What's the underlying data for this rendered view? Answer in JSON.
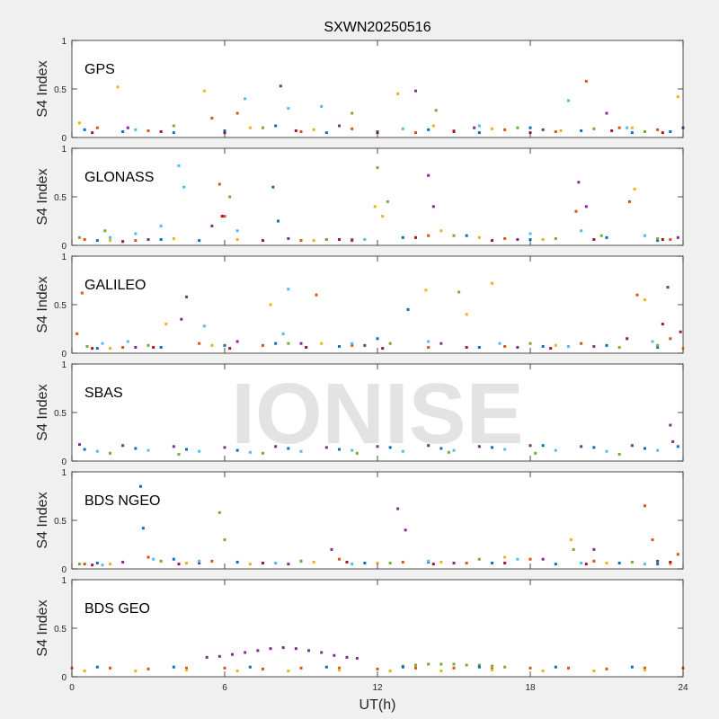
{
  "chart_data": [
    {
      "type": "scatter",
      "title": "SXWN20250516",
      "label": "GPS",
      "ylabel": "S4 Index",
      "xlim": [
        0,
        24
      ],
      "xticks": [
        0,
        6,
        12,
        18,
        24
      ],
      "ylim": [
        0,
        1
      ],
      "yticks": [
        0,
        0.5,
        1
      ],
      "series": [
        {
          "color": "#0072bd",
          "x": [
            0.5,
            2,
            4,
            6,
            8,
            10,
            12,
            14,
            16,
            18,
            20,
            22,
            23.5
          ],
          "values": [
            0.08,
            0.06,
            0.05,
            0.07,
            0.12,
            0.05,
            0.06,
            0.08,
            0.05,
            0.1,
            0.07,
            0.05,
            0.06
          ]
        },
        {
          "color": "#d95319",
          "x": [
            1,
            3,
            5.5,
            6.5,
            9,
            11,
            13.5,
            15,
            17,
            19,
            20.2,
            21.5,
            23
          ],
          "values": [
            0.1,
            0.07,
            0.2,
            0.25,
            0.06,
            0.09,
            0.05,
            0.07,
            0.08,
            0.06,
            0.58,
            0.1,
            0.08
          ]
        },
        {
          "color": "#edb120",
          "x": [
            0.3,
            1.8,
            5.2,
            7,
            9.5,
            12.8,
            14.2,
            16.5,
            19.2,
            22,
            23.8
          ],
          "values": [
            0.15,
            0.52,
            0.48,
            0.1,
            0.08,
            0.45,
            0.12,
            0.09,
            0.07,
            0.1,
            0.42
          ]
        },
        {
          "color": "#7e2f8e",
          "x": [
            2.2,
            8.2,
            10.5,
            13.5,
            15.8,
            18.5,
            21,
            24
          ],
          "values": [
            0.1,
            0.53,
            0.12,
            0.48,
            0.1,
            0.08,
            0.25,
            0.1
          ]
        },
        {
          "color": "#77ac30",
          "x": [
            4,
            7.5,
            11,
            14.3,
            17.5,
            20.5,
            22.5
          ],
          "values": [
            0.12,
            0.1,
            0.25,
            0.28,
            0.1,
            0.09,
            0.06
          ]
        },
        {
          "color": "#4dbeee",
          "x": [
            2.5,
            6.8,
            8.5,
            9.8,
            13,
            16,
            19.5,
            21.8
          ],
          "values": [
            0.08,
            0.4,
            0.3,
            0.32,
            0.09,
            0.12,
            0.38,
            0.1
          ]
        },
        {
          "color": "#a2142f",
          "x": [
            0.8,
            3.5,
            6,
            8.8,
            12,
            15,
            18,
            21.2,
            23.2
          ],
          "values": [
            0.05,
            0.06,
            0.05,
            0.07,
            0.05,
            0.06,
            0.05,
            0.07,
            0.05
          ]
        }
      ]
    },
    {
      "type": "scatter",
      "label": "GLONASS",
      "ylabel": "S4 Index",
      "xlim": [
        0,
        24
      ],
      "xticks": [
        0,
        6,
        12,
        18,
        24
      ],
      "ylim": [
        0,
        1
      ],
      "yticks": [
        0,
        0.5,
        1
      ],
      "series": [
        {
          "color": "#0072bd",
          "x": [
            1,
            3.5,
            5,
            7.9,
            8.1,
            10,
            13,
            15.5,
            18,
            21,
            23
          ],
          "values": [
            0.05,
            0.06,
            0.05,
            0.6,
            0.25,
            0.06,
            0.08,
            0.1,
            0.06,
            0.08,
            0.05
          ]
        },
        {
          "color": "#d95319",
          "x": [
            0.5,
            2.5,
            5.8,
            6,
            9,
            11,
            14,
            17,
            19.8,
            21.9,
            23.5
          ],
          "values": [
            0.06,
            0.05,
            0.63,
            0.3,
            0.05,
            0.06,
            0.1,
            0.07,
            0.35,
            0.45,
            0.06
          ]
        },
        {
          "color": "#edb120",
          "x": [
            1.5,
            4,
            6.5,
            9.5,
            11.9,
            12.2,
            14.5,
            16,
            18.5,
            22.1
          ],
          "values": [
            0.05,
            0.07,
            0.06,
            0.05,
            0.4,
            0.3,
            0.15,
            0.08,
            0.06,
            0.58
          ]
        },
        {
          "color": "#7e2f8e",
          "x": [
            3,
            5.5,
            8.5,
            11,
            14,
            14.2,
            17.5,
            19.9,
            20.2,
            23.8
          ],
          "values": [
            0.06,
            0.2,
            0.07,
            0.05,
            0.72,
            0.4,
            0.06,
            0.65,
            0.4,
            0.08
          ]
        },
        {
          "color": "#77ac30",
          "x": [
            0.3,
            1.3,
            6.2,
            10,
            12,
            12.4,
            15,
            19,
            20.8,
            23
          ],
          "values": [
            0.08,
            0.15,
            0.5,
            0.06,
            0.8,
            0.45,
            0.1,
            0.07,
            0.1,
            0.07
          ]
        },
        {
          "color": "#4dbeee",
          "x": [
            1.5,
            2.5,
            3.5,
            4.2,
            4.4,
            6.5,
            11.5,
            18,
            20,
            22.5
          ],
          "values": [
            0.08,
            0.12,
            0.2,
            0.82,
            0.6,
            0.15,
            0.06,
            0.12,
            0.15,
            0.1
          ]
        },
        {
          "color": "#a2142f",
          "x": [
            2,
            5.9,
            7.5,
            10.5,
            13.5,
            16.5,
            20.5,
            23.2
          ],
          "values": [
            0.04,
            0.3,
            0.05,
            0.06,
            0.08,
            0.05,
            0.06,
            0.06
          ]
        }
      ]
    },
    {
      "type": "scatter",
      "label": "GALILEO",
      "ylabel": "S4 Index",
      "xlim": [
        0,
        24
      ],
      "xticks": [
        0,
        6,
        12,
        18,
        24
      ],
      "ylim": [
        0,
        1
      ],
      "yticks": [
        0,
        0.5,
        1
      ],
      "series": [
        {
          "color": "#0072bd",
          "x": [
            1,
            3.5,
            6,
            8,
            10.5,
            12,
            13.2,
            16,
            18.5,
            21,
            23
          ],
          "values": [
            0.05,
            0.06,
            0.08,
            0.1,
            0.07,
            0.15,
            0.45,
            0.06,
            0.07,
            0.08,
            0.06
          ]
        },
        {
          "color": "#d95319",
          "x": [
            0.2,
            0.4,
            2,
            5,
            7.5,
            9.6,
            11,
            14,
            17,
            20,
            22.2,
            23.5
          ],
          "values": [
            0.2,
            0.62,
            0.06,
            0.1,
            0.08,
            0.6,
            0.08,
            0.06,
            0.07,
            0.1,
            0.6,
            0.15
          ]
        },
        {
          "color": "#edb120",
          "x": [
            1.5,
            3.7,
            5.5,
            7.8,
            9.8,
            13.9,
            15.5,
            16.5,
            19,
            22.5,
            24
          ],
          "values": [
            0.05,
            0.3,
            0.08,
            0.5,
            0.1,
            0.65,
            0.4,
            0.72,
            0.08,
            0.55,
            0.05
          ]
        },
        {
          "color": "#7e2f8e",
          "x": [
            2.5,
            4.5,
            4.3,
            6.5,
            9,
            11.5,
            14.5,
            17.5,
            20.5,
            23.4
          ],
          "values": [
            0.06,
            0.58,
            0.35,
            0.12,
            0.1,
            0.08,
            0.1,
            0.06,
            0.07,
            0.68
          ]
        },
        {
          "color": "#77ac30",
          "x": [
            0.6,
            3,
            8.5,
            12.5,
            15.2,
            18,
            21.5,
            23
          ],
          "values": [
            0.07,
            0.08,
            0.1,
            0.1,
            0.63,
            0.1,
            0.06,
            0.08
          ]
        },
        {
          "color": "#4dbeee",
          "x": [
            1.2,
            2.2,
            5.2,
            8.5,
            8.3,
            11,
            14,
            16.8,
            19.5,
            22.8
          ],
          "values": [
            0.1,
            0.12,
            0.28,
            0.66,
            0.2,
            0.1,
            0.12,
            0.1,
            0.07,
            0.12
          ]
        },
        {
          "color": "#a2142f",
          "x": [
            0.8,
            3.2,
            6.2,
            9.2,
            12.2,
            15.5,
            18.8,
            21.8,
            23.2,
            23.9
          ],
          "values": [
            0.05,
            0.06,
            0.05,
            0.06,
            0.05,
            0.06,
            0.05,
            0.15,
            0.3,
            0.22
          ]
        }
      ]
    },
    {
      "type": "scatter",
      "label": "SBAS",
      "watermark": "IONISE",
      "ylabel": "S4 Index",
      "xlim": [
        0,
        24
      ],
      "xticks": [
        0,
        6,
        12,
        18,
        24
      ],
      "ylim": [
        0,
        1
      ],
      "yticks": [
        0,
        0.5,
        1
      ],
      "series": [
        {
          "color": "#0072bd",
          "x": [
            0.5,
            2.5,
            4.5,
            6.5,
            8.5,
            10.5,
            12.5,
            14.5,
            16.5,
            18.5,
            20.5,
            22.5,
            23.8
          ],
          "values": [
            0.12,
            0.13,
            0.12,
            0.11,
            0.13,
            0.12,
            0.14,
            0.13,
            0.14,
            0.16,
            0.14,
            0.13,
            0.15
          ]
        },
        {
          "color": "#7e2f8e",
          "x": [
            0.3,
            2,
            4,
            6,
            8,
            10,
            12,
            14,
            16,
            18,
            20,
            22,
            23.5,
            23.6
          ],
          "values": [
            0.17,
            0.16,
            0.15,
            0.14,
            0.15,
            0.14,
            0.15,
            0.16,
            0.15,
            0.16,
            0.15,
            0.16,
            0.37,
            0.2
          ]
        },
        {
          "color": "#4dbeee",
          "x": [
            1,
            3,
            5,
            7,
            9,
            11,
            13,
            15,
            17,
            19,
            21,
            23
          ],
          "values": [
            0.1,
            0.11,
            0.1,
            0.09,
            0.1,
            0.11,
            0.1,
            0.11,
            0.12,
            0.11,
            0.1,
            0.11
          ]
        },
        {
          "color": "#77ac30",
          "x": [
            1.5,
            4.2,
            7.5,
            11.2,
            14.8,
            18.2,
            21.5
          ],
          "values": [
            0.08,
            0.07,
            0.08,
            0.08,
            0.09,
            0.08,
            0.07
          ]
        }
      ]
    },
    {
      "type": "scatter",
      "label": "BDS NGEO",
      "ylabel": "S4 Index",
      "xlim": [
        0,
        24
      ],
      "xticks": [
        0,
        6,
        12,
        18,
        24
      ],
      "ylim": [
        0,
        1
      ],
      "yticks": [
        0,
        0.5,
        1
      ],
      "series": [
        {
          "color": "#0072bd",
          "x": [
            1,
            2.7,
            2.8,
            4,
            6.5,
            9,
            11.5,
            14,
            16.5,
            19,
            21.5,
            23
          ],
          "values": [
            0.06,
            0.85,
            0.42,
            0.1,
            0.07,
            0.08,
            0.06,
            0.07,
            0.06,
            0.05,
            0.06,
            0.05
          ]
        },
        {
          "color": "#d95319",
          "x": [
            0.5,
            3,
            5.5,
            8,
            10.5,
            13,
            15.5,
            18,
            20.5,
            22.5,
            22.8,
            23.8
          ],
          "values": [
            0.05,
            0.12,
            0.08,
            0.06,
            0.1,
            0.07,
            0.06,
            0.1,
            0.08,
            0.65,
            0.3,
            0.15
          ]
        },
        {
          "color": "#edb120",
          "x": [
            1.5,
            4.5,
            7,
            9.5,
            12,
            14.5,
            17,
            19.6,
            21,
            23.5
          ],
          "values": [
            0.05,
            0.06,
            0.05,
            0.07,
            0.06,
            0.07,
            0.12,
            0.3,
            0.06,
            0.05
          ]
        },
        {
          "color": "#7e2f8e",
          "x": [
            2,
            5,
            8.5,
            10.2,
            12.8,
            13.1,
            15,
            18.5,
            20.5,
            23
          ],
          "values": [
            0.07,
            0.06,
            0.05,
            0.2,
            0.62,
            0.4,
            0.06,
            0.1,
            0.2,
            0.08
          ]
        },
        {
          "color": "#77ac30",
          "x": [
            0.3,
            3.5,
            5.8,
            6,
            9,
            12.5,
            16,
            19.7,
            22
          ],
          "values": [
            0.05,
            0.08,
            0.58,
            0.3,
            0.08,
            0.06,
            0.1,
            0.2,
            0.07
          ]
        },
        {
          "color": "#4dbeee",
          "x": [
            1.2,
            3.2,
            5,
            8,
            11,
            14,
            17.5,
            20,
            22.5
          ],
          "values": [
            0.04,
            0.1,
            0.08,
            0.06,
            0.05,
            0.08,
            0.1,
            0.06,
            0.05
          ]
        },
        {
          "color": "#a2142f",
          "x": [
            0.8,
            4.2,
            7.5,
            10.8,
            14.2,
            17,
            20.2,
            23.5
          ],
          "values": [
            0.04,
            0.05,
            0.06,
            0.07,
            0.05,
            0.06,
            0.05,
            0.07
          ]
        }
      ]
    },
    {
      "type": "scatter",
      "label": "BDS GEO",
      "ylabel": "S4 Index",
      "xlabel": "UT(h)",
      "xlim": [
        0,
        24
      ],
      "xticks": [
        0,
        6,
        12,
        18,
        24
      ],
      "ylim": [
        0,
        1
      ],
      "yticks": [
        0,
        0.5,
        1
      ],
      "series": [
        {
          "color": "#d95319",
          "x": [
            0,
            1.5,
            3,
            4.5,
            6,
            7.5,
            9,
            10.5,
            12,
            13.5,
            15,
            16.5,
            18,
            19.5,
            21,
            22.5,
            24
          ],
          "values": [
            0.09,
            0.09,
            0.08,
            0.09,
            0.09,
            0.08,
            0.09,
            0.09,
            0.08,
            0.09,
            0.09,
            0.08,
            0.09,
            0.09,
            0.08,
            0.09,
            0.09
          ]
        },
        {
          "color": "#edb120",
          "x": [
            0.5,
            2.5,
            4.5,
            6.5,
            8.5,
            10.5,
            12.5,
            14.5,
            16.5,
            18.5,
            20.5,
            22.5
          ],
          "values": [
            0.06,
            0.06,
            0.07,
            0.06,
            0.06,
            0.07,
            0.06,
            0.06,
            0.07,
            0.06,
            0.06,
            0.07
          ]
        },
        {
          "color": "#7e2f8e",
          "x": [
            5.3,
            5.8,
            6.3,
            6.8,
            7.3,
            7.8,
            8.3,
            8.8,
            9.3,
            9.8,
            10.3,
            10.8,
            11.2
          ],
          "values": [
            0.2,
            0.21,
            0.23,
            0.25,
            0.27,
            0.29,
            0.3,
            0.29,
            0.27,
            0.25,
            0.22,
            0.2,
            0.19
          ]
        },
        {
          "color": "#77ac30",
          "x": [
            13,
            13.5,
            14,
            14.5,
            15,
            15.5,
            16,
            16.5,
            17
          ],
          "values": [
            0.11,
            0.12,
            0.13,
            0.13,
            0.13,
            0.12,
            0.12,
            0.11,
            0.1
          ]
        },
        {
          "color": "#0072bd",
          "x": [
            1,
            4,
            7,
            10,
            13,
            16,
            19,
            22
          ],
          "values": [
            0.1,
            0.1,
            0.1,
            0.1,
            0.1,
            0.1,
            0.1,
            0.1
          ]
        }
      ]
    }
  ]
}
